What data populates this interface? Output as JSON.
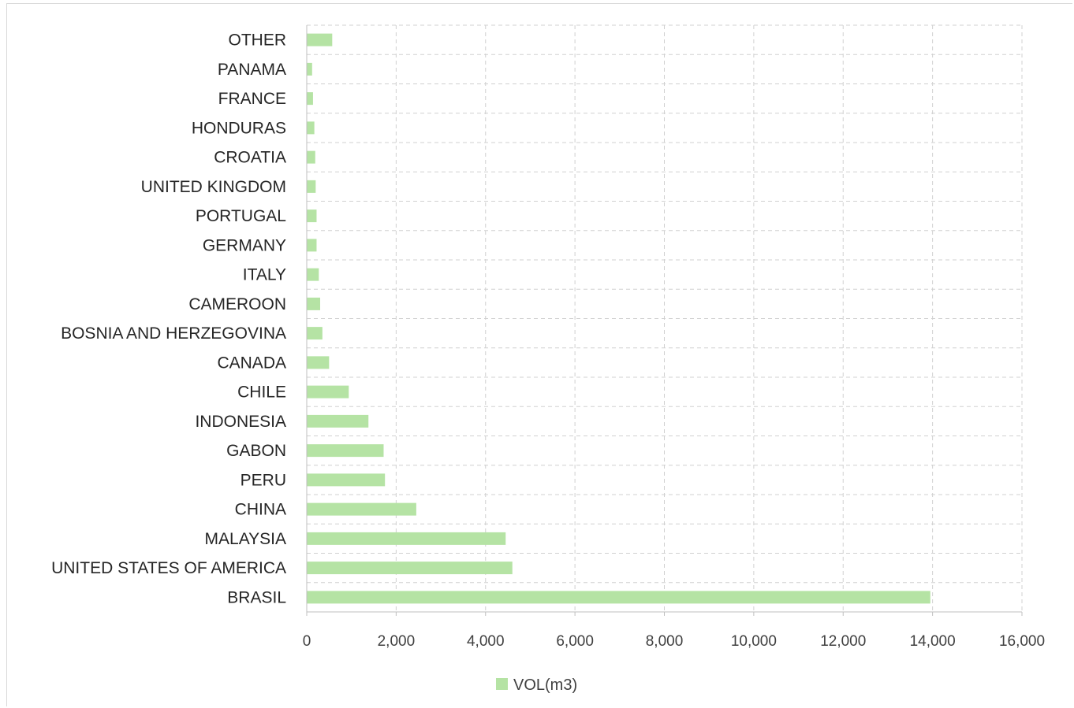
{
  "chart_data": {
    "type": "bar",
    "orientation": "horizontal",
    "categories": [
      "BRASIL",
      "UNITED STATES OF AMERICA",
      "MALAYSIA",
      "CHINA",
      "PERU",
      "GABON",
      "INDONESIA",
      "CHILE",
      "CANADA",
      "BOSNIA AND HERZEGOVINA",
      "CAMEROON",
      "ITALY",
      "GERMANY",
      "PORTUGAL",
      "UNITED KINGDOM",
      "CROATIA",
      "HONDURAS",
      "FRANCE",
      "PANAMA",
      "OTHER"
    ],
    "series": [
      {
        "name": "VOL(m3)",
        "values": [
          13950,
          4600,
          4450,
          2450,
          1750,
          1720,
          1380,
          940,
          500,
          350,
          300,
          270,
          220,
          220,
          200,
          190,
          170,
          140,
          120,
          570
        ]
      }
    ],
    "xlim": [
      0,
      16000
    ],
    "xticks": [
      "0",
      "2,000",
      "4,000",
      "6,000",
      "8,000",
      "10,000",
      "12,000",
      "14,000",
      "16,000"
    ],
    "grid": true,
    "legend_position": "bottom",
    "colors": {
      "bar": "#b5e3a4",
      "grid": "#d0d0d0",
      "axis": "#bfbfbf"
    }
  }
}
